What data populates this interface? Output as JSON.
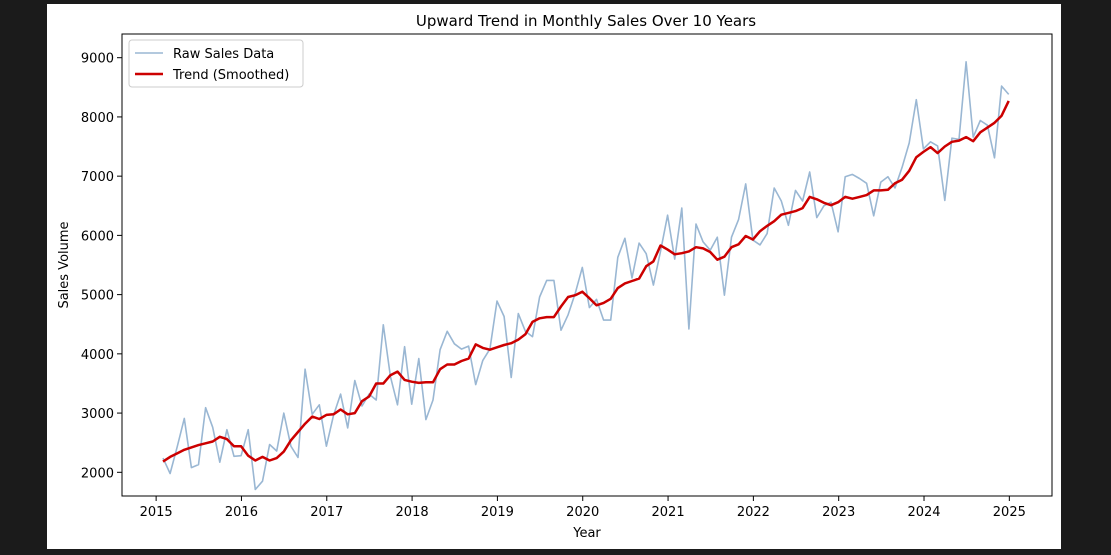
{
  "chart_data": {
    "type": "line",
    "title": "Upward Trend in Monthly Sales Over 10 Years",
    "xlabel": "Year",
    "ylabel": "Sales Volume",
    "xlim": [
      2014.6,
      2025.5
    ],
    "ylim": [
      1600,
      9400
    ],
    "x_ticks": [
      2015,
      2016,
      2017,
      2018,
      2019,
      2020,
      2021,
      2022,
      2023,
      2024,
      2025
    ],
    "x_tick_labels": [
      "2015",
      "2016",
      "2017",
      "2018",
      "2019",
      "2020",
      "2021",
      "2022",
      "2023",
      "2024",
      "2025"
    ],
    "y_ticks": [
      2000,
      3000,
      4000,
      5000,
      6000,
      7000,
      8000,
      9000
    ],
    "y_tick_labels": [
      "2000",
      "3000",
      "4000",
      "5000",
      "6000",
      "7000",
      "8000",
      "9000"
    ],
    "grid": false,
    "legend_position": "top-left",
    "x_start_year": 2015.08,
    "x_step": 0.0833,
    "series": [
      {
        "name": "Raw Sales Data",
        "color": "#9ab7d3",
        "values": [
          2240,
          1980,
          2430,
          2910,
          2080,
          2130,
          3090,
          2760,
          2170,
          2720,
          2270,
          2280,
          2720,
          1710,
          1850,
          2470,
          2360,
          3000,
          2440,
          2250,
          3740,
          2980,
          3140,
          2440,
          2960,
          3320,
          2750,
          3550,
          3120,
          3320,
          3220,
          4490,
          3620,
          3140,
          4120,
          3150,
          3920,
          2890,
          3220,
          4070,
          4380,
          4170,
          4080,
          4130,
          3480,
          3890,
          4080,
          4890,
          4630,
          3600,
          4680,
          4380,
          4290,
          4960,
          5240,
          5240,
          4400,
          4660,
          5020,
          5460,
          4780,
          4920,
          4570,
          4570,
          5630,
          5950,
          5280,
          5870,
          5690,
          5160,
          5730,
          6340,
          5600,
          6460,
          4420,
          6190,
          5890,
          5750,
          5970,
          4990,
          5970,
          6270,
          6870,
          5920,
          5840,
          6030,
          6800,
          6580,
          6170,
          6760,
          6580,
          7070,
          6300,
          6500,
          6560,
          6060,
          6990,
          7030,
          6960,
          6880,
          6330,
          6900,
          6990,
          6800,
          7150,
          7560,
          8290,
          7460,
          7580,
          7510,
          6590,
          7640,
          7620,
          8930,
          7660,
          7940,
          7860,
          7310,
          8520,
          8380
        ]
      },
      {
        "name": "Trend (Smoothed)",
        "color": "#cc0000",
        "values": [
          2180,
          2260,
          2320,
          2380,
          2420,
          2460,
          2490,
          2520,
          2600,
          2560,
          2440,
          2440,
          2280,
          2200,
          2260,
          2200,
          2240,
          2350,
          2540,
          2680,
          2820,
          2940,
          2900,
          2970,
          2980,
          3060,
          2980,
          3000,
          3200,
          3280,
          3500,
          3500,
          3640,
          3700,
          3560,
          3530,
          3510,
          3520,
          3520,
          3740,
          3820,
          3820,
          3880,
          3920,
          4160,
          4100,
          4070,
          4110,
          4150,
          4180,
          4240,
          4330,
          4540,
          4600,
          4620,
          4620,
          4800,
          4960,
          4990,
          5050,
          4940,
          4820,
          4860,
          4930,
          5110,
          5190,
          5230,
          5270,
          5480,
          5560,
          5830,
          5760,
          5680,
          5700,
          5730,
          5800,
          5780,
          5720,
          5590,
          5640,
          5800,
          5850,
          5990,
          5930,
          6070,
          6160,
          6240,
          6350,
          6380,
          6410,
          6460,
          6650,
          6610,
          6550,
          6510,
          6560,
          6650,
          6620,
          6650,
          6680,
          6760,
          6760,
          6770,
          6880,
          6940,
          7090,
          7320,
          7410,
          7490,
          7390,
          7500,
          7580,
          7600,
          7660,
          7590,
          7740,
          7820,
          7900,
          8020,
          8270
        ]
      }
    ]
  }
}
